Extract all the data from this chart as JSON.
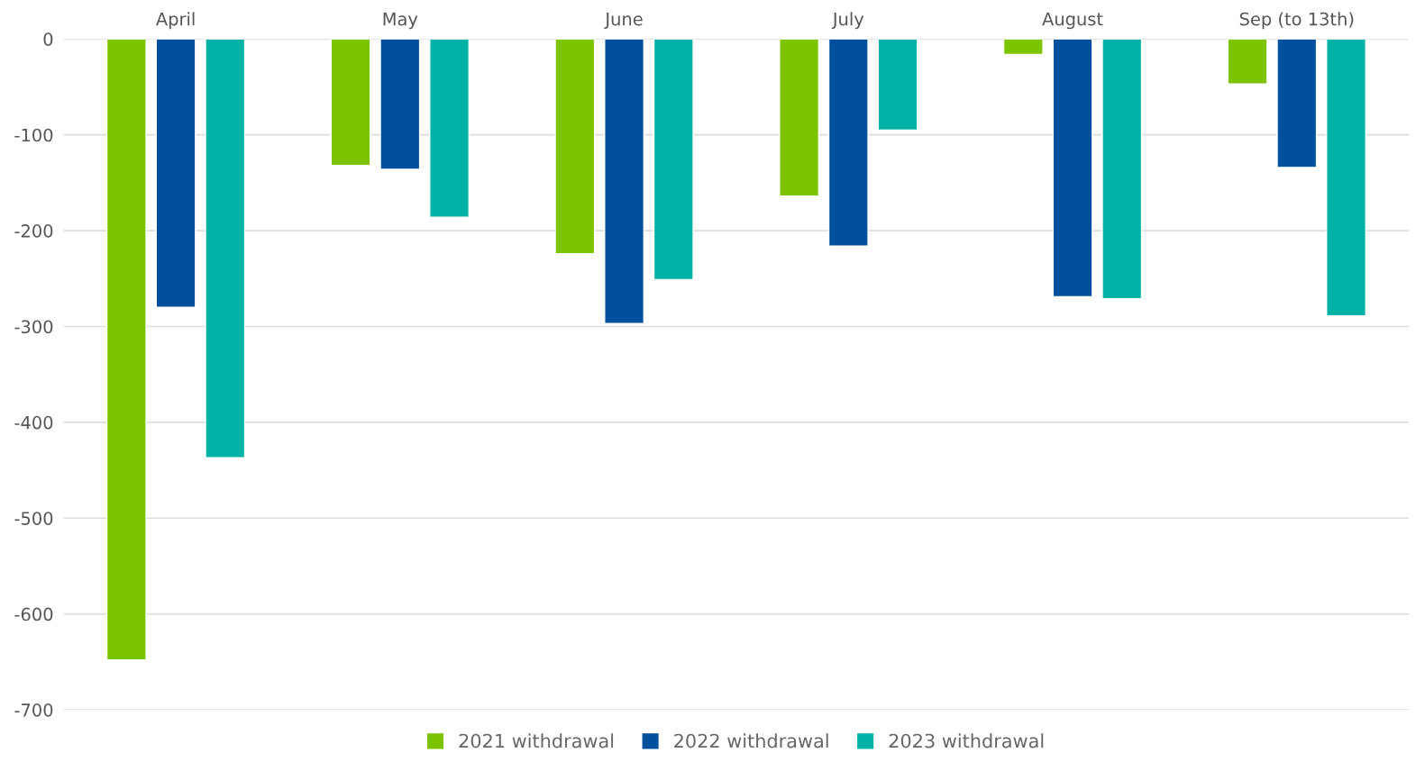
{
  "chart_data": {
    "type": "bar",
    "categories": [
      "April",
      "May",
      "June",
      "July",
      "August",
      "Sep (to 13th)"
    ],
    "series": [
      {
        "name": "2021 withdrawal",
        "color": "#7dc400",
        "values": [
          -648,
          -132,
          -224,
          -164,
          -16,
          -47
        ]
      },
      {
        "name": "2022 withdrawal",
        "color": "#00509e",
        "values": [
          -280,
          -136,
          -297,
          -216,
          -269,
          -134
        ]
      },
      {
        "name": "2023 withdrawal",
        "color": "#00b2a5",
        "values": [
          -437,
          -186,
          -251,
          -95,
          -271,
          -289
        ]
      }
    ],
    "ylim": [
      -700,
      0
    ],
    "yticks": [
      0,
      -100,
      -200,
      -300,
      -400,
      -500,
      -600,
      -700
    ],
    "grid": "y",
    "legend": "bottom"
  }
}
